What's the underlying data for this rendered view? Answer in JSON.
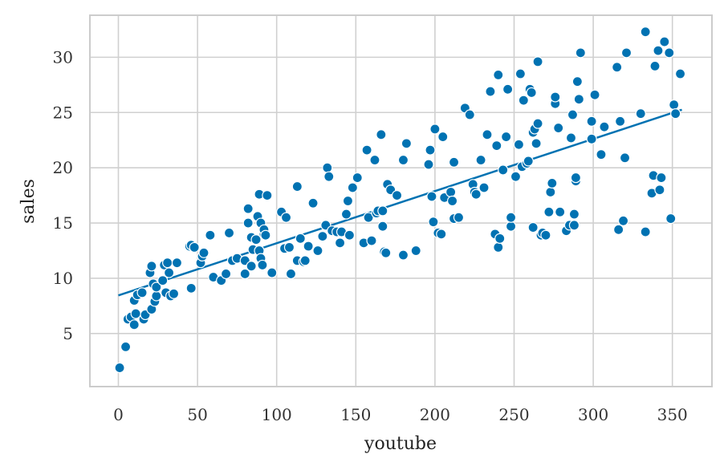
{
  "chart_data": {
    "type": "scatter",
    "title": "",
    "xlabel": "youtube",
    "ylabel": "sales",
    "xlim": [
      -18,
      375
    ],
    "ylim": [
      0.2,
      33.8
    ],
    "xticks": [
      0,
      50,
      100,
      150,
      200,
      250,
      300,
      350
    ],
    "yticks": [
      5,
      10,
      15,
      20,
      25,
      30
    ],
    "grid": true,
    "legend": "none",
    "colors": {
      "points": "#0072B2",
      "line": "#0072B2",
      "grid": "#d0d0d0",
      "frame": "#cccccc"
    },
    "points": [
      [
        0.8,
        1.9
      ],
      [
        4.6,
        3.8
      ],
      [
        6,
        6.3
      ],
      [
        8,
        6.5
      ],
      [
        10,
        5.8
      ],
      [
        11,
        6.8
      ],
      [
        10,
        8
      ],
      [
        12,
        8.5
      ],
      [
        15,
        8.7
      ],
      [
        16,
        6.3
      ],
      [
        17,
        6.7
      ],
      [
        20,
        10.5
      ],
      [
        21,
        11.1
      ],
      [
        21,
        7.2
      ],
      [
        22,
        9.5
      ],
      [
        23,
        7.9
      ],
      [
        24,
        8.4
      ],
      [
        24,
        9.2
      ],
      [
        28,
        9.8
      ],
      [
        29,
        11.2
      ],
      [
        30,
        8.7
      ],
      [
        31,
        11.4
      ],
      [
        32,
        10.5
      ],
      [
        33,
        8.4
      ],
      [
        35,
        8.6
      ],
      [
        37,
        11.4
      ],
      [
        45,
        12.9
      ],
      [
        46,
        13
      ],
      [
        46,
        9.1
      ],
      [
        48,
        12.8
      ],
      [
        52,
        11.4
      ],
      [
        53,
        12
      ],
      [
        54,
        12.3
      ],
      [
        58,
        13.9
      ],
      [
        60,
        10.1
      ],
      [
        65,
        9.8
      ],
      [
        68,
        10.4
      ],
      [
        70,
        14.1
      ],
      [
        72,
        11.6
      ],
      [
        75,
        11.8
      ],
      [
        80,
        10.4
      ],
      [
        80,
        11.6
      ],
      [
        82,
        15
      ],
      [
        82,
        16.3
      ],
      [
        84,
        11.1
      ],
      [
        84,
        13.7
      ],
      [
        85,
        12.6
      ],
      [
        87,
        13.5
      ],
      [
        88,
        15.6
      ],
      [
        89,
        12.5
      ],
      [
        89,
        17.6
      ],
      [
        90,
        15
      ],
      [
        90,
        11.8
      ],
      [
        91,
        11.2
      ],
      [
        92,
        14
      ],
      [
        92,
        14.4
      ],
      [
        93,
        13.9
      ],
      [
        94,
        17.5
      ],
      [
        97,
        10.5
      ],
      [
        103,
        16
      ],
      [
        105,
        12.7
      ],
      [
        106,
        15.5
      ],
      [
        108,
        12.8
      ],
      [
        109,
        10.4
      ],
      [
        113,
        11.6
      ],
      [
        113,
        18.3
      ],
      [
        115,
        13.6
      ],
      [
        117,
        11.5
      ],
      [
        118,
        11.6
      ],
      [
        120,
        12.9
      ],
      [
        123,
        16.8
      ],
      [
        126,
        12.5
      ],
      [
        129,
        13.8
      ],
      [
        131,
        14.8
      ],
      [
        132,
        20
      ],
      [
        133,
        19.2
      ],
      [
        135,
        14.3
      ],
      [
        138,
        14.2
      ],
      [
        140,
        13.2
      ],
      [
        141,
        14.2
      ],
      [
        144,
        15.8
      ],
      [
        145,
        17
      ],
      [
        146,
        13.9
      ],
      [
        148,
        18.2
      ],
      [
        151,
        19.1
      ],
      [
        155,
        13.2
      ],
      [
        157,
        21.6
      ],
      [
        158,
        15.5
      ],
      [
        160,
        13.4
      ],
      [
        162,
        20.7
      ],
      [
        163,
        15.9
      ],
      [
        164,
        16.1
      ],
      [
        166,
        23
      ],
      [
        167,
        16.1
      ],
      [
        167,
        14.7
      ],
      [
        168,
        12.4
      ],
      [
        169,
        12.3
      ],
      [
        170,
        18.5
      ],
      [
        172,
        18
      ],
      [
        176,
        17.5
      ],
      [
        180,
        12.1
      ],
      [
        180,
        20.7
      ],
      [
        182,
        22.2
      ],
      [
        188,
        12.5
      ],
      [
        196,
        20.3
      ],
      [
        197,
        21.6
      ],
      [
        198,
        17.4
      ],
      [
        199,
        15.1
      ],
      [
        200,
        23.5
      ],
      [
        202,
        14.1
      ],
      [
        204,
        14
      ],
      [
        205,
        22.8
      ],
      [
        206,
        17.3
      ],
      [
        210,
        17.8
      ],
      [
        211,
        17
      ],
      [
        212,
        20.5
      ],
      [
        212,
        15.4
      ],
      [
        215,
        15.5
      ],
      [
        219,
        25.4
      ],
      [
        222,
        24.8
      ],
      [
        224,
        18.5
      ],
      [
        225,
        17.8
      ],
      [
        226,
        17.6
      ],
      [
        229,
        20.7
      ],
      [
        231,
        18.2
      ],
      [
        233,
        23
      ],
      [
        235,
        26.9
      ],
      [
        238,
        14
      ],
      [
        239,
        22
      ],
      [
        240,
        28.4
      ],
      [
        240,
        12.8
      ],
      [
        241,
        13.6
      ],
      [
        243,
        19.8
      ],
      [
        245,
        22.8
      ],
      [
        246,
        27.1
      ],
      [
        248,
        14.7
      ],
      [
        248,
        15.5
      ],
      [
        251,
        19.2
      ],
      [
        253,
        22.1
      ],
      [
        254,
        28.5
      ],
      [
        255,
        20.1
      ],
      [
        256,
        26.1
      ],
      [
        258,
        20.4
      ],
      [
        259,
        20.6
      ],
      [
        260,
        27.1
      ],
      [
        261,
        26.8
      ],
      [
        262,
        23.2
      ],
      [
        262,
        14.6
      ],
      [
        263,
        23.5
      ],
      [
        264,
        22.2
      ],
      [
        265,
        29.6
      ],
      [
        265,
        24
      ],
      [
        267,
        13.9
      ],
      [
        268,
        14.1
      ],
      [
        270,
        13.9
      ],
      [
        272,
        16
      ],
      [
        273,
        17.8
      ],
      [
        274,
        18.6
      ],
      [
        276,
        25.8
      ],
      [
        276,
        26.4
      ],
      [
        278,
        23.6
      ],
      [
        279,
        16
      ],
      [
        283,
        14.3
      ],
      [
        285,
        14.8
      ],
      [
        286,
        22.7
      ],
      [
        287,
        24.8
      ],
      [
        288,
        15.8
      ],
      [
        288,
        14.8
      ],
      [
        289,
        18.8
      ],
      [
        289,
        19.1
      ],
      [
        290,
        27.8
      ],
      [
        291,
        26.2
      ],
      [
        292,
        30.4
      ],
      [
        299,
        24.2
      ],
      [
        299,
        22.6
      ],
      [
        301,
        26.6
      ],
      [
        305,
        21.2
      ],
      [
        307,
        23.7
      ],
      [
        315,
        29.1
      ],
      [
        316,
        14.4
      ],
      [
        317,
        24.2
      ],
      [
        319,
        15.2
      ],
      [
        320,
        20.9
      ],
      [
        321,
        30.4
      ],
      [
        330,
        24.9
      ],
      [
        333,
        14.2
      ],
      [
        333,
        32.3
      ],
      [
        337,
        17.7
      ],
      [
        338,
        19.3
      ],
      [
        339,
        29.2
      ],
      [
        341,
        30.6
      ],
      [
        342,
        18
      ],
      [
        343,
        19.1
      ],
      [
        345,
        31.4
      ],
      [
        348,
        30.4
      ],
      [
        349,
        15.4
      ],
      [
        351,
        25.7
      ],
      [
        352,
        24.9
      ],
      [
        355,
        28.5
      ]
    ],
    "trend_line": {
      "x": [
        0,
        356
      ],
      "y": [
        8.45,
        25.25
      ]
    }
  }
}
